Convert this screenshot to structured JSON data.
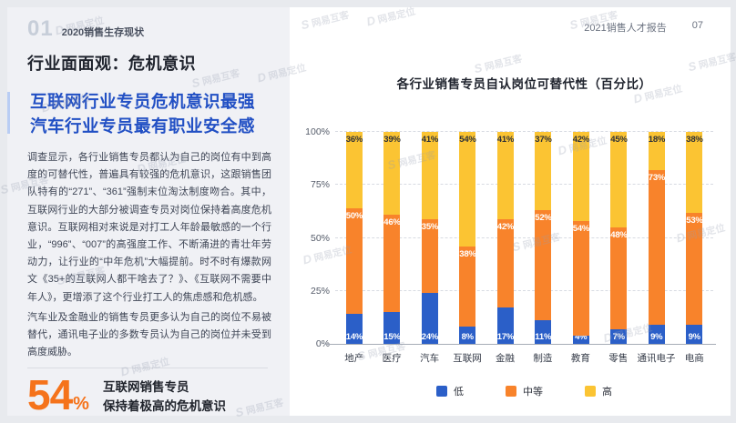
{
  "header": {
    "section_number": "01",
    "section_title": "2020销售生存现状",
    "report_title": "2021销售人才报告",
    "page_number": "07"
  },
  "left_panel": {
    "heading": "行业面面观：危机意识",
    "subheading_line1": "互联网行业专员危机意识最强",
    "subheading_line2": "汽车行业专员最有职业安全感",
    "paragraph1": "调查显示，各行业销售专员都认为自己的岗位有中到高度的可替代性，普遍具有较强的危机意识，这跟销售团队特有的“271”、“361”强制末位淘汰制度吻合。其中，互联网行业的大部分被调查专员对岗位保持着高度危机意识。互联网相对来说是对打工人年龄最敏感的一个行业，“996”、“007”的高强度工作、不断涌进的青壮年劳动力，让行业的“中年危机”大幅提前。时不时有爆款网文《35+的互联网人都干啥去了？》、《互联网不需要中年人》，更增添了这个行业打工人的焦虑感和危机感。",
    "paragraph2": "汽车业及金融业的销售专员更多认为自己的岗位不易被替代，通讯电子业的多数专员认为自己的岗位并未受到高度威胁。",
    "stat_value": "54",
    "stat_percent": "%",
    "stat_label_line1": "互联网销售专员",
    "stat_label_line2": "保持着极高的危机意识"
  },
  "chart_data": {
    "type": "bar",
    "stacked": true,
    "title": "各行业销售专员自认岗位可替代性（百分比）",
    "categories": [
      "地产",
      "医疗",
      "汽车",
      "互联网",
      "金融",
      "制造",
      "教育",
      "零售",
      "通讯电子",
      "电商"
    ],
    "series": [
      {
        "name": "低",
        "color": "#2b5fc8",
        "label_color": "#ffffff",
        "values": [
          14,
          15,
          24,
          8,
          17,
          11,
          4,
          7,
          9,
          9
        ]
      },
      {
        "name": "中等",
        "color": "#f8832b",
        "label_color": "#ffffff",
        "values": [
          50,
          46,
          35,
          38,
          42,
          52,
          54,
          48,
          73,
          53
        ]
      },
      {
        "name": "高",
        "color": "#fbc433",
        "label_color": "#2e3138",
        "values": [
          36,
          39,
          41,
          54,
          41,
          37,
          42,
          45,
          18,
          38
        ]
      }
    ],
    "ylim": [
      0,
      100
    ],
    "y_ticks": [
      100,
      75,
      50,
      25,
      0
    ],
    "y_tick_suffix": "%",
    "grid": "horizontal-dashed",
    "legend_position": "bottom",
    "value_label_suffix": "%"
  },
  "watermarks": {
    "brand1": "网易互客",
    "brand2": "网易定位"
  }
}
